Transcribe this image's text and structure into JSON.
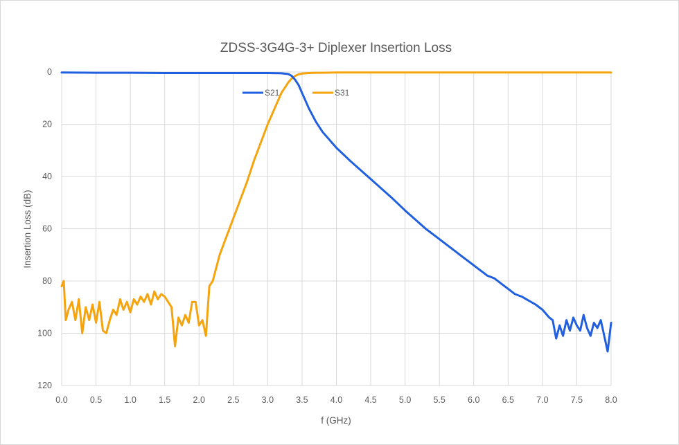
{
  "chart_data": {
    "type": "line",
    "title": "ZDSS-3G4G-3+ Diplexer Insertion Loss",
    "xlabel": "f (GHz)",
    "ylabel": "Insertion Loss (dB)",
    "xlim": [
      0,
      8
    ],
    "ylim": [
      0,
      120
    ],
    "y_reversed": true,
    "grid": "vertical",
    "legend_position": "top-center",
    "x_tick_labels": [
      "0.0",
      "0.5",
      "1.0",
      "1.5",
      "2.0",
      "2.5",
      "3.0",
      "3.5",
      "4.0",
      "4.5",
      "5.0",
      "5.5",
      "6.0",
      "6.5",
      "7.0",
      "7.5",
      "8.0"
    ],
    "y_tick_labels": [
      "0",
      "20",
      "40",
      "60",
      "80",
      "100",
      "120"
    ],
    "series": [
      {
        "name": "S21",
        "color": "#1f5fe0",
        "x": [
          0.0,
          0.5,
          1.0,
          1.5,
          2.0,
          2.5,
          3.0,
          3.2,
          3.3,
          3.35,
          3.4,
          3.45,
          3.5,
          3.6,
          3.7,
          3.8,
          4.0,
          4.2,
          4.5,
          4.8,
          5.0,
          5.3,
          5.5,
          5.7,
          5.8,
          6.0,
          6.1,
          6.2,
          6.3,
          6.4,
          6.5,
          6.6,
          6.7,
          6.8,
          6.9,
          7.0,
          7.1,
          7.15,
          7.2,
          7.25,
          7.3,
          7.35,
          7.4,
          7.45,
          7.5,
          7.55,
          7.6,
          7.65,
          7.7,
          7.75,
          7.8,
          7.85,
          7.9,
          7.95,
          8.0
        ],
        "values": [
          0.2,
          0.3,
          0.3,
          0.4,
          0.4,
          0.4,
          0.4,
          0.5,
          0.8,
          1.5,
          3.0,
          5.0,
          8.0,
          14.0,
          19.0,
          23.0,
          29.0,
          34.0,
          41.0,
          48.0,
          53.0,
          60.0,
          64.0,
          68.0,
          70.0,
          74.0,
          76.0,
          78.0,
          79.0,
          81.0,
          83.0,
          85.0,
          86.0,
          87.5,
          89.0,
          91.0,
          94.0,
          95.0,
          102.0,
          97.0,
          101.0,
          95.0,
          99.0,
          94.0,
          97.0,
          99.0,
          93.0,
          98.0,
          101.0,
          96.0,
          98.0,
          95.0,
          101.0,
          107.0,
          96.0
        ]
      },
      {
        "name": "S31",
        "color": "#f5a40e",
        "x": [
          0.0,
          0.03,
          0.06,
          0.1,
          0.15,
          0.2,
          0.25,
          0.3,
          0.35,
          0.4,
          0.45,
          0.5,
          0.55,
          0.6,
          0.65,
          0.7,
          0.75,
          0.8,
          0.85,
          0.9,
          0.95,
          1.0,
          1.05,
          1.1,
          1.15,
          1.2,
          1.25,
          1.3,
          1.35,
          1.4,
          1.45,
          1.5,
          1.55,
          1.6,
          1.65,
          1.7,
          1.75,
          1.8,
          1.85,
          1.9,
          1.95,
          2.0,
          2.05,
          2.1,
          2.15,
          2.2,
          2.3,
          2.4,
          2.5,
          2.6,
          2.7,
          2.8,
          2.9,
          3.0,
          3.1,
          3.2,
          3.3,
          3.35,
          3.4,
          3.45,
          3.5,
          3.6,
          3.7,
          3.8,
          4.0,
          4.5,
          5.0,
          5.5,
          6.0,
          6.5,
          7.0,
          7.5,
          8.0
        ],
        "values": [
          82.0,
          80.0,
          95.0,
          91.0,
          88.0,
          95.0,
          87.0,
          100.0,
          90.0,
          95.0,
          89.0,
          96.0,
          88.0,
          99.0,
          100.0,
          95.0,
          91.0,
          93.0,
          87.0,
          91.0,
          88.0,
          92.0,
          87.0,
          89.0,
          86.0,
          88.0,
          85.0,
          89.0,
          84.0,
          87.0,
          85.0,
          86.0,
          88.0,
          90.0,
          105.0,
          94.0,
          97.0,
          93.0,
          96.0,
          88.0,
          88.0,
          97.0,
          95.0,
          101.0,
          82.0,
          80.0,
          70.0,
          63.0,
          56.0,
          49.0,
          42.0,
          34.0,
          27.0,
          20.0,
          14.0,
          8.0,
          4.0,
          2.5,
          1.5,
          0.9,
          0.6,
          0.4,
          0.3,
          0.3,
          0.2,
          0.2,
          0.2,
          0.2,
          0.2,
          0.2,
          0.2,
          0.2,
          0.2
        ]
      }
    ]
  }
}
